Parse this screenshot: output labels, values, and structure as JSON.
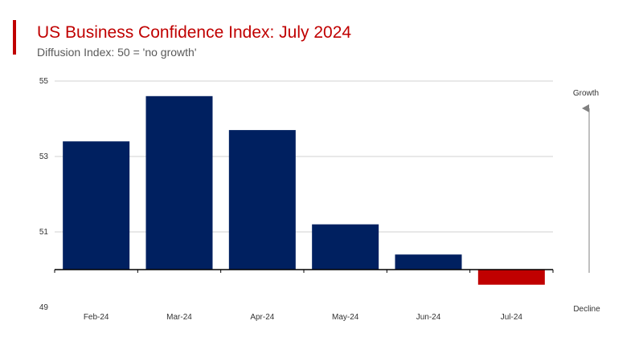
{
  "header": {
    "title": "US Business Confidence Index: July 2024",
    "subtitle": "Diffusion Index: 50 = 'no growth'"
  },
  "colors": {
    "accent": "#c00000",
    "positive_bar": "#002060",
    "negative_bar": "#c00000",
    "gridline": "#d0d0d0",
    "axis": "#000000",
    "text": "#333333",
    "arrow": "#808080"
  },
  "chart_data": {
    "type": "bar",
    "categories": [
      "Feb-24",
      "Mar-24",
      "Apr-24",
      "May-24",
      "Jun-24",
      "Jul-24"
    ],
    "values": [
      53.4,
      54.6,
      53.7,
      51.2,
      50.4,
      49.6
    ],
    "baseline": 50,
    "ylim": [
      49,
      55
    ],
    "yticks": [
      49,
      51,
      53,
      55
    ],
    "grid": true,
    "legend": "none",
    "side_labels": {
      "top": "Growth",
      "bottom": "Decline"
    }
  }
}
